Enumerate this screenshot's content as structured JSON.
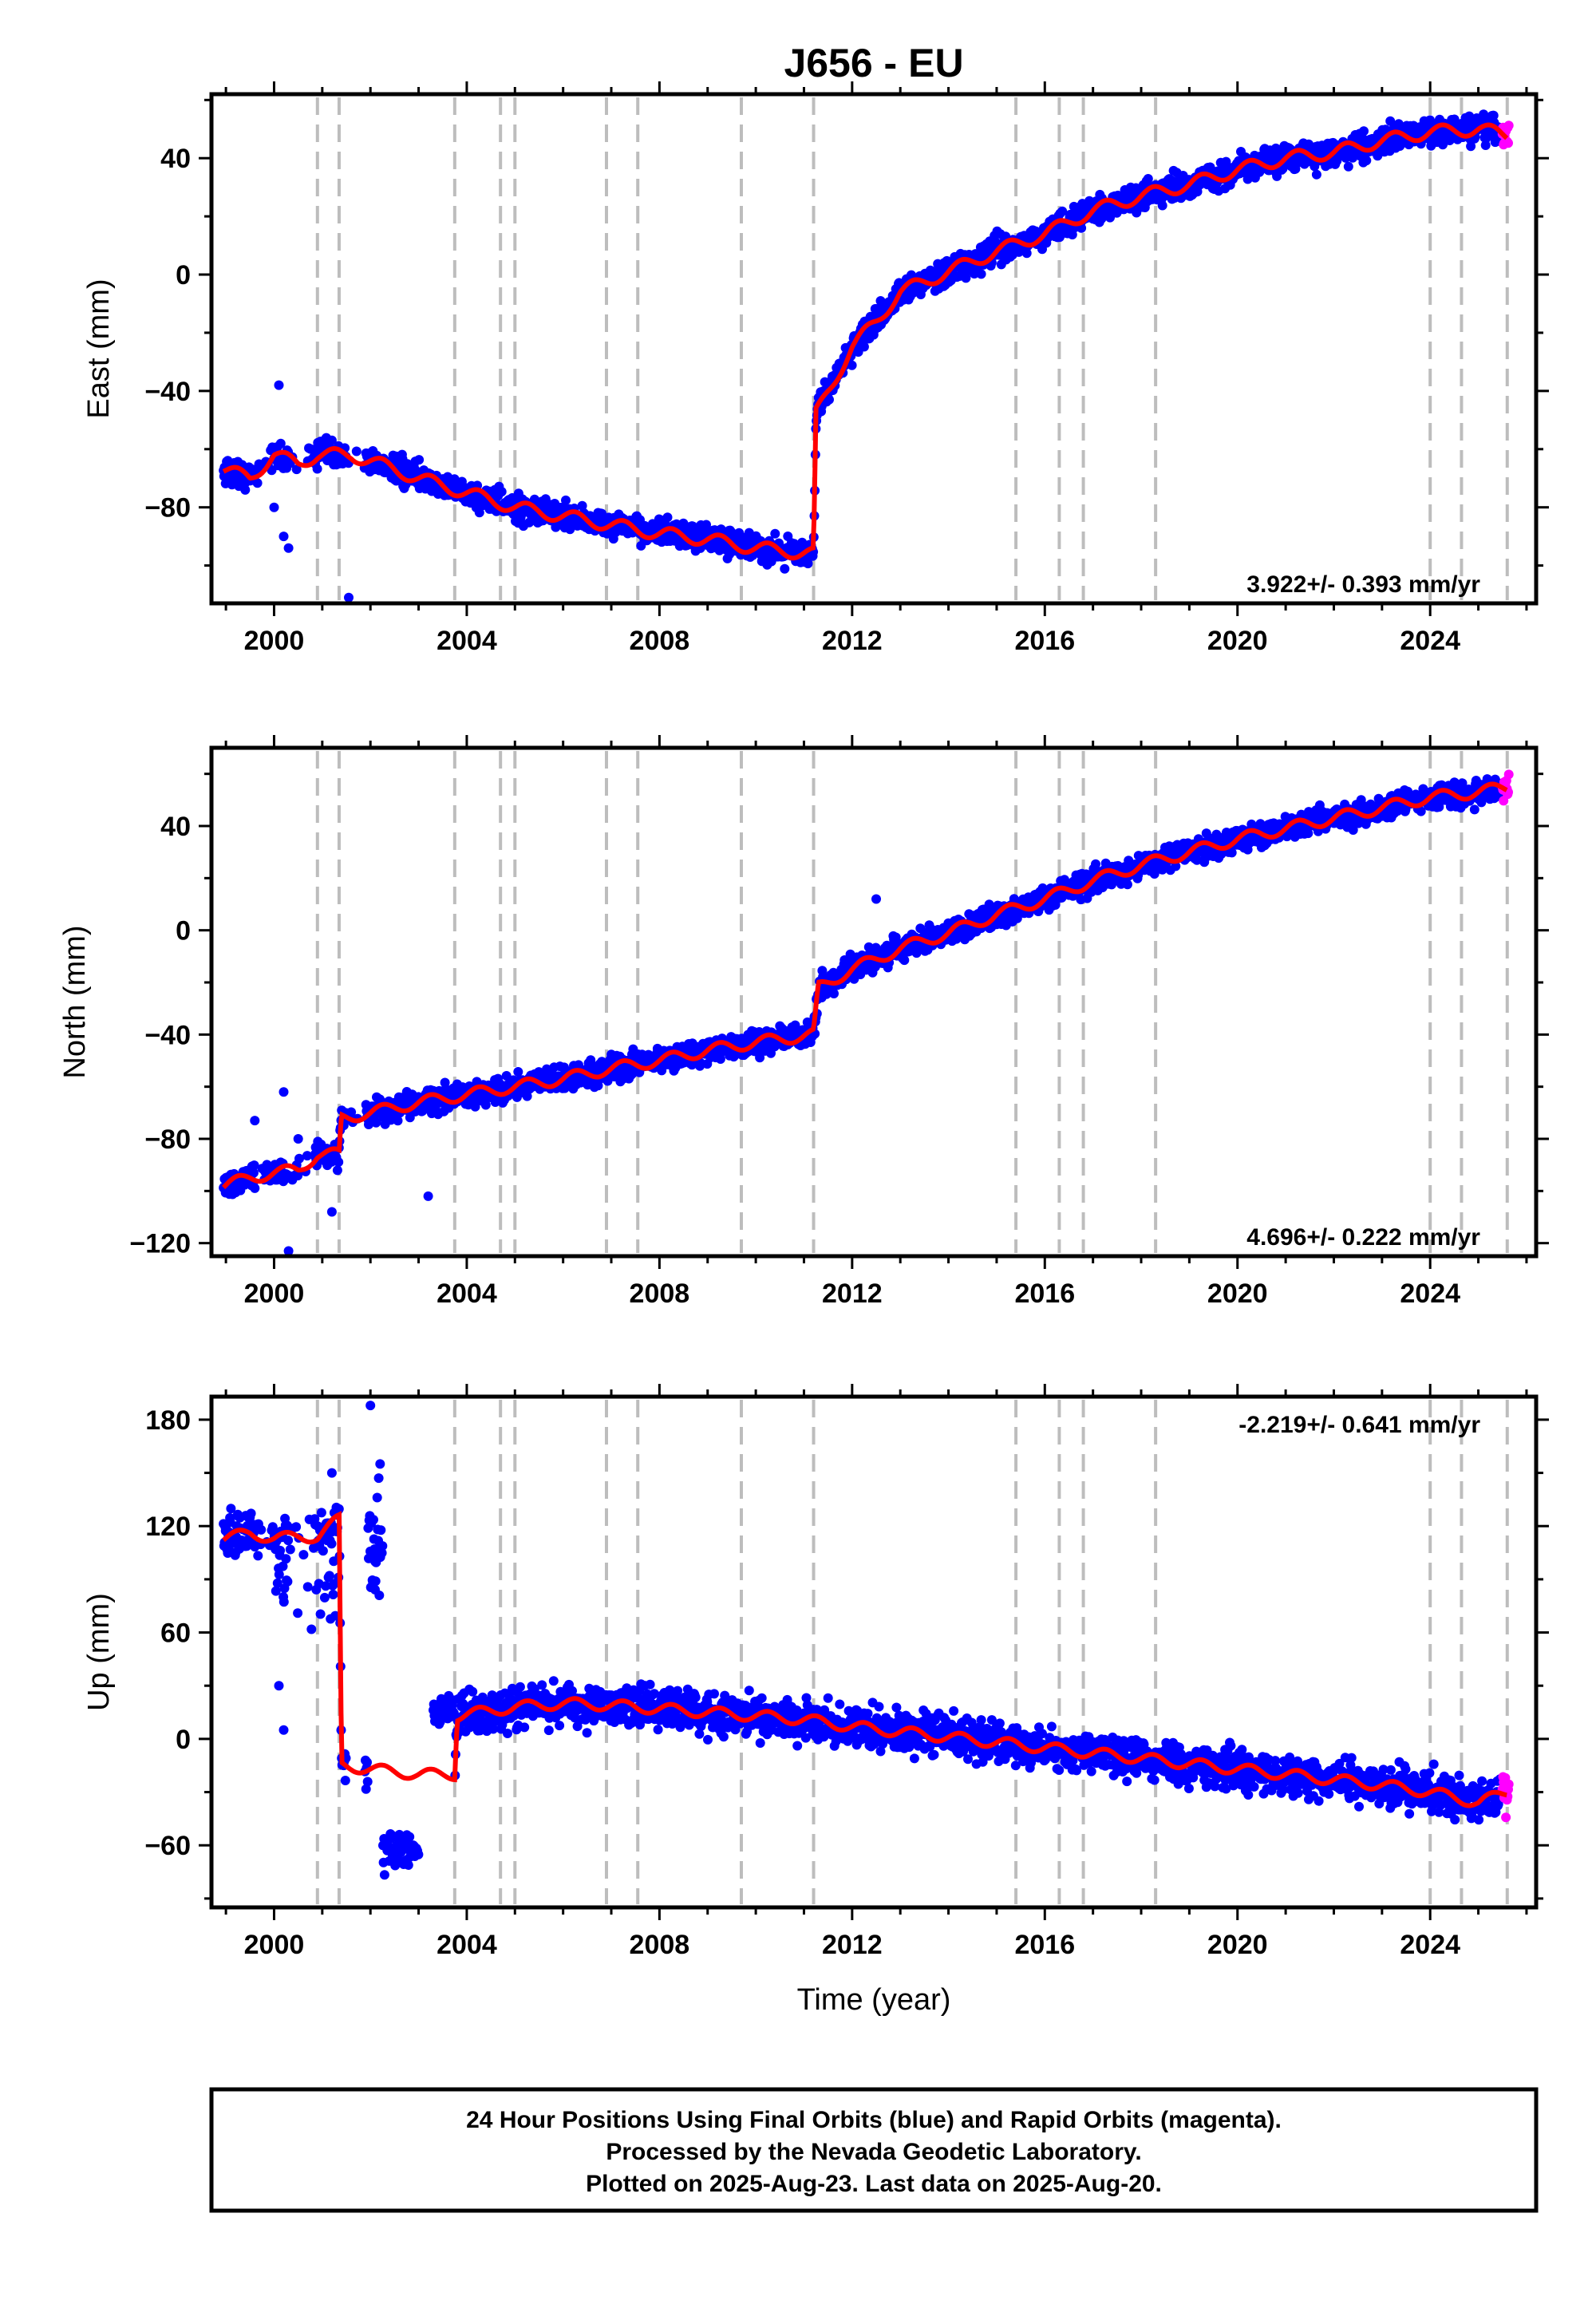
{
  "title": "J656 - EU",
  "colors": {
    "final_orbits": "#0000ff",
    "rapid_orbits": "#ff00ff",
    "model": "#ff0000",
    "event_lines": "#bdbdbd"
  },
  "footer": {
    "line1": "24 Hour Positions Using Final Orbits (blue) and Rapid Orbits (magenta).",
    "line2": "Processed by the Nevada Geodetic Laboratory.",
    "line3": "Plotted on 2025-Aug-23. Last data on 2025-Aug-20."
  },
  "chart_data": [
    {
      "type": "scatter",
      "component": "east",
      "ylabel": "East (mm)",
      "xlabel": "",
      "rate_label": "3.922+/- 0.393 mm/yr",
      "xlim": [
        1998.7,
        2026.2
      ],
      "ylim": [
        -113,
        62
      ],
      "xticks": [
        2000,
        2004,
        2008,
        2012,
        2016,
        2020,
        2024
      ],
      "yticks": [
        -80,
        -40,
        0,
        40
      ],
      "event_lines": [
        2000.9,
        2001.35,
        2003.75,
        2004.7,
        2005.0,
        2006.9,
        2007.55,
        2009.7,
        2011.2,
        2015.4,
        2016.3,
        2016.8,
        2018.3,
        2024.0,
        2024.65,
        2025.6
      ],
      "model": [
        [
          1998.95,
          -67
        ],
        [
          1999.5,
          -70
        ],
        [
          2000.0,
          -62
        ],
        [
          2000.5,
          -65
        ],
        [
          2000.9,
          -62
        ],
        [
          2001.35,
          -62
        ],
        [
          2001.6,
          -62
        ],
        [
          2002.0,
          -64
        ],
        [
          2003.0,
          -70
        ],
        [
          2004.0,
          -75
        ],
        [
          2005.0,
          -80
        ],
        [
          2006.0,
          -83
        ],
        [
          2007.0,
          -86
        ],
        [
          2008.0,
          -89
        ],
        [
          2009.0,
          -91
        ],
        [
          2010.0,
          -94
        ],
        [
          2011.2,
          -96
        ],
        [
          2011.25,
          -48
        ],
        [
          2011.5,
          -40
        ],
        [
          2012.0,
          -25
        ],
        [
          2012.5,
          -16
        ],
        [
          2013.0,
          -6
        ],
        [
          2014.0,
          1
        ],
        [
          2015.0,
          8
        ],
        [
          2016.0,
          14
        ],
        [
          2017.0,
          22
        ],
        [
          2018.0,
          27
        ],
        [
          2019.0,
          31
        ],
        [
          2020.0,
          36
        ],
        [
          2021.0,
          40
        ],
        [
          2022.0,
          42
        ],
        [
          2023.0,
          46
        ],
        [
          2024.0,
          49
        ],
        [
          2025.0,
          50
        ],
        [
          2025.6,
          48
        ]
      ],
      "outliers": [
        [
          2000.1,
          -38
        ],
        [
          2000.2,
          -90
        ],
        [
          2000.3,
          -94
        ],
        [
          2001.55,
          -111
        ],
        [
          2000.0,
          -80
        ],
        [
          2001.2,
          -57
        ]
      ]
    },
    {
      "type": "scatter",
      "component": "north",
      "ylabel": "North (mm)",
      "xlabel": "",
      "rate_label": "4.696+/- 0.222 mm/yr",
      "xlim": [
        1998.7,
        2026.2
      ],
      "ylim": [
        -125,
        70
      ],
      "xticks": [
        2000,
        2004,
        2008,
        2012,
        2016,
        2020,
        2024
      ],
      "yticks": [
        -120,
        -80,
        -40,
        0,
        40
      ],
      "event_lines": [
        2000.9,
        2001.35,
        2003.75,
        2004.7,
        2005.0,
        2006.9,
        2007.55,
        2009.7,
        2011.2,
        2015.4,
        2016.3,
        2016.8,
        2018.3,
        2024.0,
        2024.65,
        2025.6
      ],
      "model": [
        [
          1998.95,
          -98
        ],
        [
          1999.5,
          -95
        ],
        [
          2000.0,
          -93
        ],
        [
          2000.5,
          -92
        ],
        [
          2000.9,
          -86
        ],
        [
          2001.35,
          -86
        ],
        [
          2001.4,
          -72
        ],
        [
          2002.0,
          -70
        ],
        [
          2003.0,
          -66
        ],
        [
          2004.0,
          -63
        ],
        [
          2005.0,
          -60
        ],
        [
          2006.0,
          -57
        ],
        [
          2007.0,
          -53
        ],
        [
          2008.0,
          -50
        ],
        [
          2009.0,
          -46
        ],
        [
          2010.0,
          -43
        ],
        [
          2011.2,
          -40
        ],
        [
          2011.3,
          -22
        ],
        [
          2012.0,
          -15
        ],
        [
          2013.0,
          -7
        ],
        [
          2014.0,
          -1
        ],
        [
          2015.0,
          6
        ],
        [
          2016.0,
          12
        ],
        [
          2017.0,
          19
        ],
        [
          2018.0,
          25
        ],
        [
          2019.0,
          30
        ],
        [
          2020.0,
          35
        ],
        [
          2021.0,
          39
        ],
        [
          2022.0,
          43
        ],
        [
          2023.0,
          47
        ],
        [
          2024.0,
          51
        ],
        [
          2025.0,
          53
        ],
        [
          2025.6,
          55
        ]
      ],
      "outliers": [
        [
          2000.3,
          -123
        ],
        [
          2000.2,
          -62
        ],
        [
          1999.6,
          -73
        ],
        [
          2001.2,
          -108
        ],
        [
          2003.2,
          -102
        ],
        [
          2012.5,
          12
        ],
        [
          2000.5,
          -80
        ]
      ]
    },
    {
      "type": "scatter",
      "component": "up",
      "ylabel": "Up (mm)",
      "xlabel": "Time (year)",
      "rate_label": "-2.219+/- 0.641 mm/yr",
      "xlim": [
        1998.7,
        2026.2
      ],
      "ylim": [
        -95,
        193
      ],
      "xticks": [
        2000,
        2004,
        2008,
        2012,
        2016,
        2020,
        2024
      ],
      "yticks": [
        -60,
        0,
        60,
        120,
        180
      ],
      "event_lines": [
        2000.9,
        2001.35,
        2003.75,
        2004.7,
        2005.0,
        2006.9,
        2007.55,
        2009.7,
        2011.2,
        2015.4,
        2016.3,
        2016.8,
        2018.3,
        2024.0,
        2024.65,
        2025.6
      ],
      "model": [
        [
          1998.95,
          113
        ],
        [
          1999.5,
          116
        ],
        [
          2000.0,
          113
        ],
        [
          2000.5,
          114
        ],
        [
          2000.9,
          114
        ],
        [
          2001.35,
          124
        ],
        [
          2001.4,
          -15
        ],
        [
          2002.0,
          -17
        ],
        [
          2003.0,
          -20
        ],
        [
          2003.75,
          -20
        ],
        [
          2003.8,
          13
        ],
        [
          2005.0,
          18
        ],
        [
          2006.0,
          20
        ],
        [
          2007.0,
          19
        ],
        [
          2008.0,
          17
        ],
        [
          2009.0,
          15
        ],
        [
          2010.0,
          13
        ],
        [
          2011.0,
          11
        ],
        [
          2012.0,
          7
        ],
        [
          2013.0,
          4
        ],
        [
          2014.0,
          1
        ],
        [
          2015.0,
          -2
        ],
        [
          2016.0,
          -5
        ],
        [
          2017.0,
          -8
        ],
        [
          2018.0,
          -11
        ],
        [
          2019.0,
          -14
        ],
        [
          2020.0,
          -17
        ],
        [
          2021.0,
          -20
        ],
        [
          2022.0,
          -23
        ],
        [
          2023.0,
          -26
        ],
        [
          2024.0,
          -30
        ],
        [
          2025.0,
          -36
        ],
        [
          2025.6,
          -30
        ]
      ],
      "outliers": [
        [
          2002.0,
          188
        ],
        [
          2002.2,
          155
        ],
        [
          2002.1,
          100
        ],
        [
          2000.2,
          5
        ],
        [
          2000.1,
          30
        ],
        [
          2001.2,
          150
        ]
      ]
    }
  ]
}
